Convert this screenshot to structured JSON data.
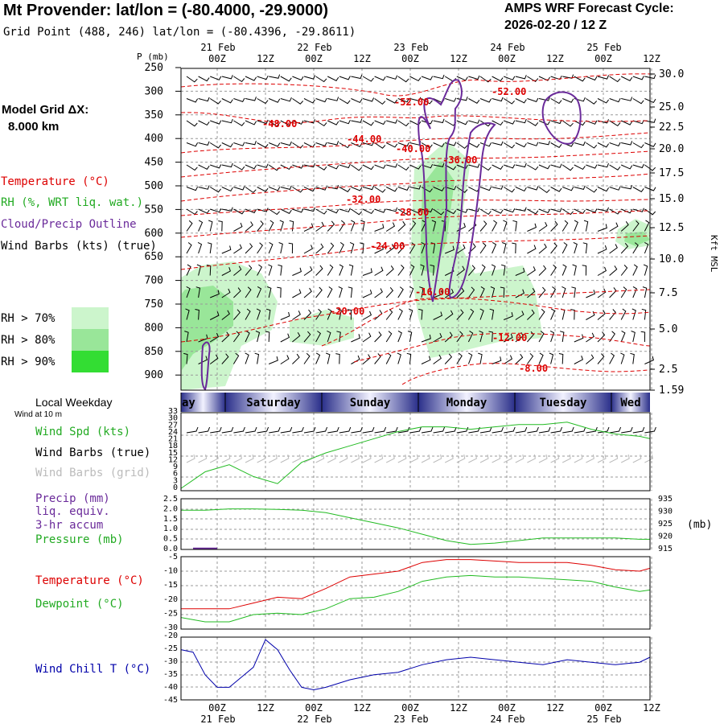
{
  "header": {
    "title": "Mt Provender:  lat/lon = (-80.4000, -29.9000)",
    "grid_point": "Grid Point (488, 246) lat/lon = (-80.4396, -29.8611)",
    "cycle_line1": "AMPS WRF Forecast Cycle:",
    "cycle_line2": "2026-02-20 / 12  Z"
  },
  "time_axis": {
    "ticks": [
      "00Z",
      "12Z",
      "00Z",
      "12Z",
      "00Z",
      "12Z",
      "00Z",
      "12Z",
      "00Z",
      "12Z"
    ],
    "dates": [
      "21 Feb",
      "22 Feb",
      "23 Feb",
      "24 Feb",
      "25 Feb"
    ]
  },
  "left_panel": {
    "model_grid_label": "Model Grid ΔX:",
    "model_grid_value": "8.000 km",
    "temperature_label": "Temperature (°C)",
    "rh_label": "RH (%, WRT liq. wat.)",
    "cloud_label": "Cloud/Precip Outline",
    "wind_label": "Wind Barbs (kts) (true)",
    "rh70": "RH > 70%",
    "rh80": "RH > 80%",
    "rh90": "RH > 90%",
    "local_weekday": "Local Weekday",
    "wind_at_10m": "Wind at 10 m",
    "wind_spd": "Wind Spd (kts)",
    "wind_barbs_true": "Wind Barbs (true)",
    "wind_barbs_grid": "Wind Barbs (grid)",
    "precip": "Precip (mm)",
    "liq_equiv": "liq. equiv.",
    "accum": "3-hr accum",
    "pressure": "Pressure (mb)",
    "temperature2": "Temperature (°C)",
    "dewpoint": "Dewpoint (°C)",
    "wind_chill": "Wind Chill T (°C)"
  },
  "colors": {
    "temperature": "#dd0000",
    "rh": "#22bb22",
    "cloud": "#6a2a9a",
    "wind_chill": "#0000aa",
    "rh70": "#ccf5cc",
    "rh80": "#99e699",
    "rh90": "#33dd33"
  },
  "chart_data": [
    {
      "type": "heatmap",
      "title": "",
      "ylabel": "P (mb)",
      "y2label": "Kft MSL",
      "p_ticks": [
        "250",
        "300",
        "350",
        "400",
        "450",
        "500",
        "550",
        "600",
        "650",
        "700",
        "750",
        "800",
        "850",
        "900"
      ],
      "alt_ticks": [
        "30.0",
        "25.0",
        "22.5",
        "20.0",
        "17.5",
        "15.0",
        "12.5",
        "10.0",
        "7.5",
        "5.0",
        "2.5",
        "1.59"
      ],
      "isotherm_labels": [
        "-52.00",
        "-52.00",
        "-48.00",
        "-44.00",
        "-40.00",
        "-36.00",
        "-32.00",
        "-28.00",
        "-24.00",
        "-20.00",
        "-16.00",
        "-12.00",
        "-8.00"
      ]
    },
    {
      "type": "table",
      "title": "Local Weekday",
      "days": [
        "ay",
        "Saturday",
        "Sunday",
        "Monday",
        "Tuesday",
        "Wed"
      ]
    },
    {
      "type": "line",
      "ylabel": "Wind Spd (kts)",
      "y_ticks": [
        "33",
        "30",
        "27",
        "24",
        "21",
        "18",
        "15",
        "12",
        "9",
        "6",
        "3",
        "0"
      ],
      "ylim": [
        0,
        33
      ],
      "series": [
        {
          "name": "Wind Spd (kts)",
          "x_hours": [
            0,
            6,
            12,
            18,
            24,
            30,
            36,
            42,
            48,
            54,
            60,
            66,
            72,
            78,
            84,
            90,
            96,
            102,
            108,
            114,
            120
          ],
          "values": [
            1,
            8,
            11,
            6,
            3,
            12,
            16,
            19,
            22,
            25,
            27,
            27,
            26,
            27,
            28,
            28,
            29,
            26,
            24,
            23,
            22
          ]
        }
      ]
    },
    {
      "type": "line",
      "ylabel": "Precip (mm)",
      "y2label": "(mb)",
      "y_ticks": [
        "2.5",
        "2.0",
        "1.5",
        "1.0",
        "0.5",
        "0.0"
      ],
      "y2_ticks": [
        "935",
        "930",
        "925",
        "920",
        "915"
      ],
      "ylim": [
        0,
        2.5
      ],
      "y2lim": [
        915,
        935
      ],
      "series": [
        {
          "name": "Pressure (mb)",
          "x_hours": [
            0,
            6,
            12,
            18,
            24,
            30,
            36,
            42,
            48,
            54,
            60,
            66,
            72,
            78,
            84,
            90,
            96,
            102,
            108,
            114,
            120
          ],
          "values": [
            930.5,
            930.5,
            931,
            931,
            930.8,
            930.5,
            929.5,
            927.5,
            925.5,
            923.5,
            921,
            918.5,
            917,
            917.5,
            918.5,
            919.5,
            919.5,
            919.5,
            919.5,
            919,
            919
          ]
        },
        {
          "name": "Precip (mm)",
          "x_hours": [
            3,
            6,
            9
          ],
          "values": [
            0.05,
            0.05,
            0.05
          ]
        }
      ]
    },
    {
      "type": "line",
      "y_ticks": [
        "-5",
        "-10",
        "-15",
        "-20",
        "-25",
        "-30"
      ],
      "ylim": [
        -30,
        -5
      ],
      "series": [
        {
          "name": "Temperature (°C)",
          "x_hours": [
            0,
            6,
            12,
            18,
            24,
            30,
            36,
            42,
            48,
            54,
            60,
            66,
            72,
            78,
            84,
            90,
            96,
            102,
            108,
            114,
            120
          ],
          "values": [
            -23,
            -23,
            -23,
            -21,
            -19,
            -19.5,
            -16,
            -12,
            -11,
            -10,
            -7,
            -6,
            -6,
            -6.5,
            -7,
            -7,
            -7,
            -8,
            -9.5,
            -10,
            -9
          ]
        },
        {
          "name": "Dewpoint (°C)",
          "x_hours": [
            0,
            6,
            12,
            18,
            24,
            30,
            36,
            42,
            48,
            54,
            60,
            66,
            72,
            78,
            84,
            90,
            96,
            102,
            108,
            114,
            120
          ],
          "values": [
            -26,
            -27.5,
            -27.5,
            -25,
            -24.5,
            -25,
            -23,
            -19.5,
            -19,
            -17,
            -13.5,
            -12,
            -11.5,
            -12,
            -12,
            -12.5,
            -13,
            -13.5,
            -15.5,
            -17,
            -16.5
          ]
        }
      ]
    },
    {
      "type": "line",
      "ylabel": "Wind Chill T (°C)",
      "y_ticks": [
        "-20",
        "-25",
        "-30",
        "-35",
        "-40",
        "-45"
      ],
      "ylim": [
        -45,
        -20
      ],
      "series": [
        {
          "name": "Wind Chill T (°C)",
          "x_hours": [
            0,
            3,
            6,
            9,
            12,
            15,
            18,
            21,
            24,
            27,
            30,
            33,
            36,
            42,
            48,
            54,
            60,
            66,
            72,
            78,
            84,
            90,
            96,
            102,
            108,
            114,
            120
          ],
          "values": [
            -25,
            -26,
            -35,
            -40,
            -40,
            -36,
            -32,
            -21,
            -25,
            -33,
            -40,
            -41,
            -40,
            -37,
            -35,
            -34,
            -31,
            -29,
            -28,
            -29,
            -30,
            -31,
            -29,
            -30,
            -31,
            -30,
            -28
          ]
        }
      ]
    }
  ]
}
